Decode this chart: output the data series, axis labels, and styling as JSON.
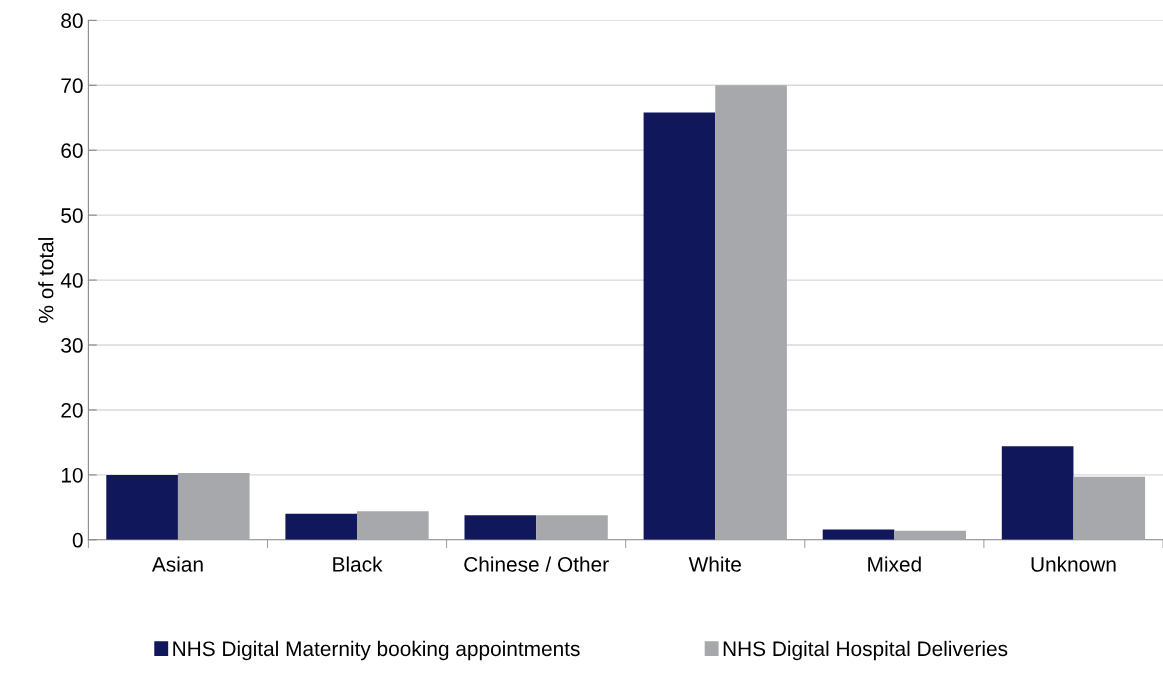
{
  "chart_data": {
    "type": "bar",
    "ylabel": "% of total",
    "categories": [
      "Asian",
      "Black",
      "Chinese / Other",
      "White",
      "Mixed",
      "Unknown"
    ],
    "series": [
      {
        "name": "NHS Digital Maternity booking appointments",
        "color": "#10175b",
        "values": [
          10.0,
          4.0,
          3.8,
          65.8,
          1.6,
          14.4
        ]
      },
      {
        "name": "NHS Digital Hospital Deliveries",
        "color": "#a7a8ab",
        "values": [
          10.3,
          4.4,
          3.8,
          70.0,
          1.4,
          9.7
        ]
      }
    ],
    "ylim": [
      0,
      80
    ],
    "yticks": [
      0,
      10,
      20,
      30,
      40,
      50,
      60,
      70,
      80
    ],
    "grid": "y",
    "legend": "bottom"
  }
}
